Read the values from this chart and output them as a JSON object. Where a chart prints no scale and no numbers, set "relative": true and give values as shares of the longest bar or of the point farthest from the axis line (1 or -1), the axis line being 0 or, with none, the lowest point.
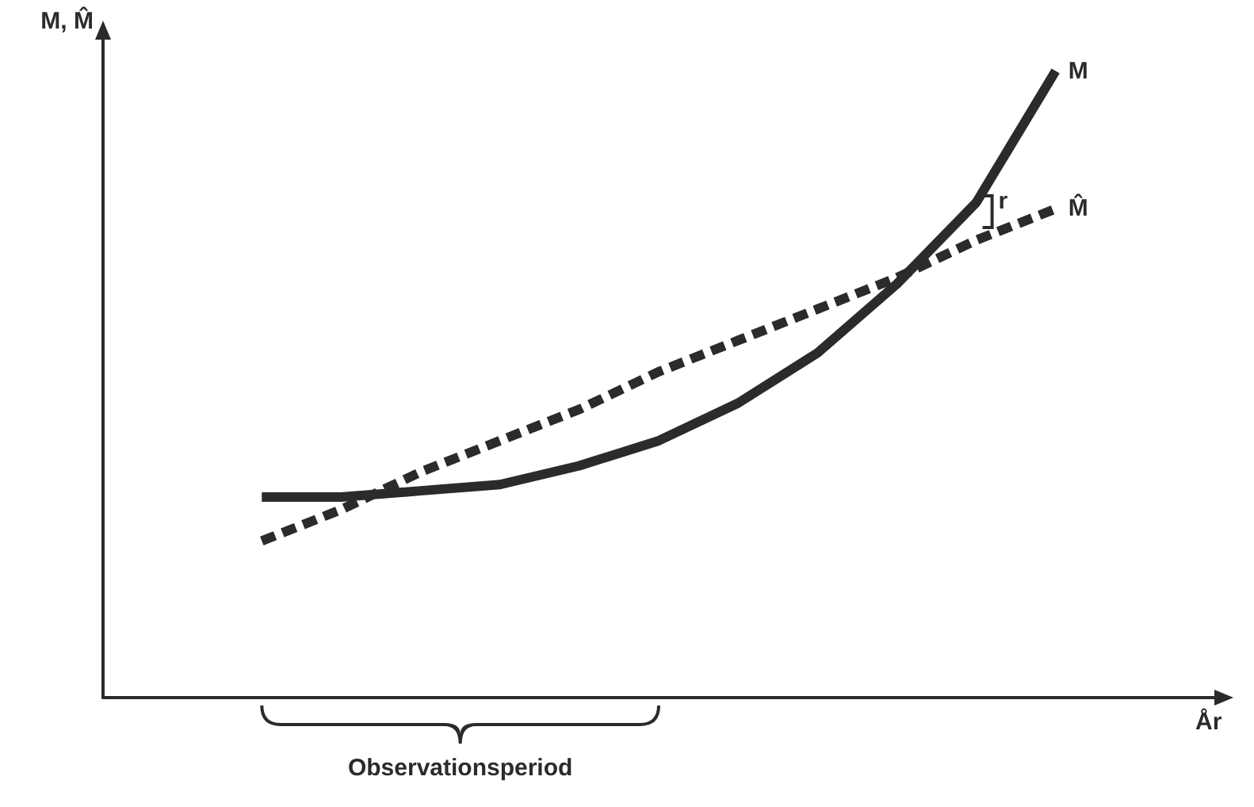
{
  "chart_data": {
    "type": "line",
    "relative": true,
    "xlabel": "År",
    "ylabel": "M, M̂",
    "legend": false,
    "grid": false,
    "marker": "none",
    "categories": [
      null,
      null,
      null,
      null,
      null,
      null,
      null,
      null,
      null,
      null,
      null,
      null,
      null,
      null,
      null
    ],
    "series": [
      {
        "name": "M",
        "color": "#2b2b2b",
        "line_style": "solid",
        "values": [
          null,
          null,
          0.32,
          0.32,
          0.33,
          0.34,
          0.37,
          0.41,
          0.47,
          0.55,
          0.66,
          0.79,
          1,
          null,
          null
        ]
      },
      {
        "name": "M̂",
        "color": "#2b2b2b",
        "line_style": "dashed",
        "values": [
          null,
          null,
          0.25,
          0.3,
          0.36,
          0.41,
          0.46,
          0.52,
          0.57,
          0.62,
          0.67,
          0.73,
          0.78,
          null,
          null
        ]
      }
    ],
    "annotations": [
      "r",
      "Observationsperiod"
    ]
  }
}
